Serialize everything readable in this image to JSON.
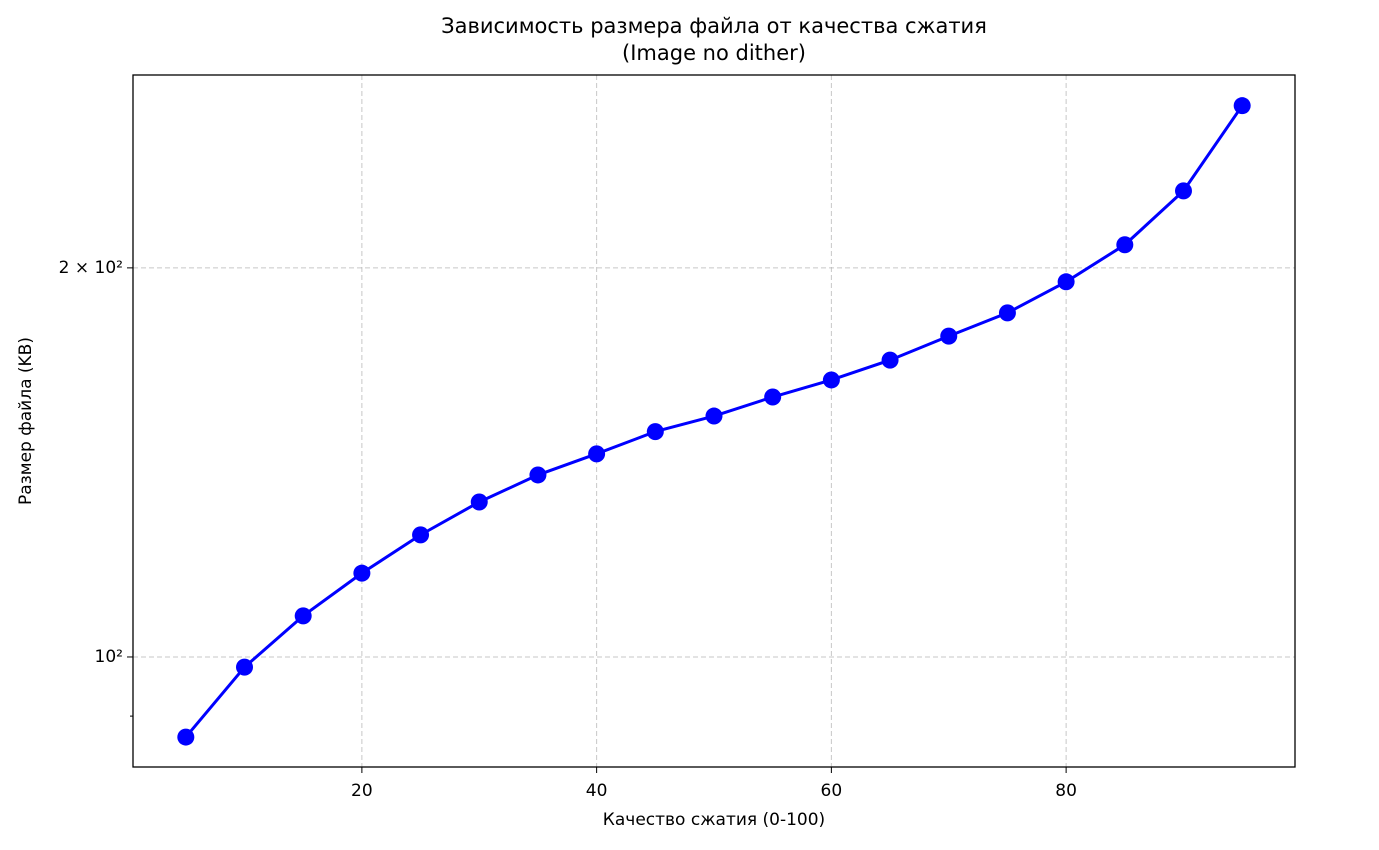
{
  "chart_data": {
    "type": "line",
    "title": "Зависимость размера файла от качества сжатия",
    "subtitle": "(Image no dither)",
    "x_label": "Качество сжатия (0-100)",
    "y_label": "Размер файла (KB)",
    "x": [
      5,
      10,
      15,
      20,
      25,
      30,
      35,
      40,
      45,
      50,
      55,
      60,
      65,
      70,
      75,
      80,
      85,
      90,
      95
    ],
    "values": [
      86.7,
      98.2,
      107.6,
      116.1,
      124.3,
      131.8,
      138.3,
      143.6,
      149.4,
      153.6,
      158.9,
      163.8,
      169.7,
      177.1,
      184.6,
      195.1,
      208.4,
      229.4,
      267.0
    ],
    "color": "#0000ff",
    "xlim": [
      0.5,
      99.5
    ],
    "xticks": [
      20,
      40,
      60,
      80
    ],
    "ylim": [
      82.2,
      282
    ],
    "yticks": [
      {
        "value": 100,
        "label": "10²"
      },
      {
        "value": 200,
        "label": "2 × 10²"
      }
    ],
    "yminorticks": [
      90
    ],
    "ylog": true,
    "grid": true
  }
}
